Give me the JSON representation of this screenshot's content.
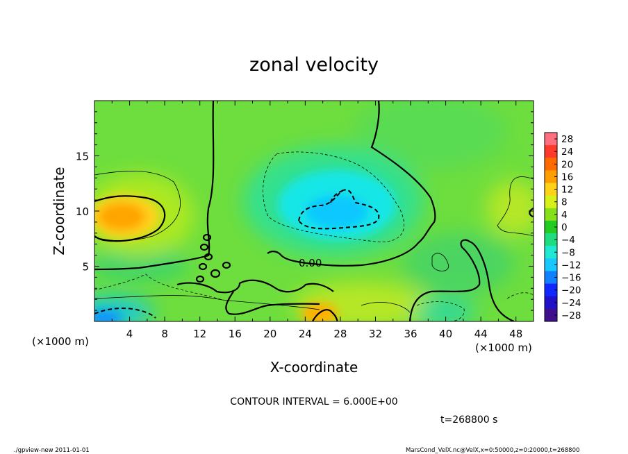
{
  "chart_data": {
    "type": "heatmap",
    "title": "zonal velocity",
    "xlabel": "X-coordinate",
    "ylabel": "Z-coordinate",
    "x_unit": "(×1000 m)",
    "y_unit": "(×1000 m)",
    "xlim": [
      0,
      50
    ],
    "ylim": [
      0,
      20
    ],
    "x_ticks": [
      4,
      8,
      12,
      16,
      20,
      24,
      28,
      32,
      36,
      40,
      44,
      48
    ],
    "y_ticks": [
      5,
      10,
      15
    ],
    "contour_interval_text": "CONTOUR INTERVAL = 6.000E+00",
    "contour_label": "0.00",
    "colorbar": {
      "levels": [
        28,
        24,
        20,
        16,
        12,
        8,
        4,
        0,
        -4,
        -8,
        -12,
        -16,
        -20,
        -24,
        -28
      ],
      "labels": [
        "28",
        "24",
        "20",
        "16",
        "12",
        "8",
        "4",
        "0",
        "−4",
        "−8",
        "−12",
        "−16",
        "−20",
        "−24",
        "−28"
      ],
      "colors": [
        "#ff6f7f",
        "#ff3a2a",
        "#ff6a00",
        "#ff9e00",
        "#ffd21a",
        "#d8f01a",
        "#86e01a",
        "#22cc22",
        "#20dc80",
        "#20e8d2",
        "#18c8ff",
        "#1080ff",
        "#1028ff",
        "#2010c8",
        "#40108c"
      ]
    },
    "features": [
      {
        "x": 4.5,
        "z": 9.5,
        "value": 14,
        "kind": "max"
      },
      {
        "x": 26,
        "z": 1,
        "value": 14,
        "kind": "max"
      },
      {
        "x": 26,
        "z": 10,
        "value": -11,
        "kind": "min"
      },
      {
        "x": 1,
        "z": 0.5,
        "value": -12,
        "kind": "min"
      }
    ]
  },
  "timestamp": "t=268800 s",
  "footer_left": "./gpview-new  2011-01-01",
  "footer_right": "MarsCond_VelX.nc@VelX,x=0:50000,z=0:20000,t=268800"
}
